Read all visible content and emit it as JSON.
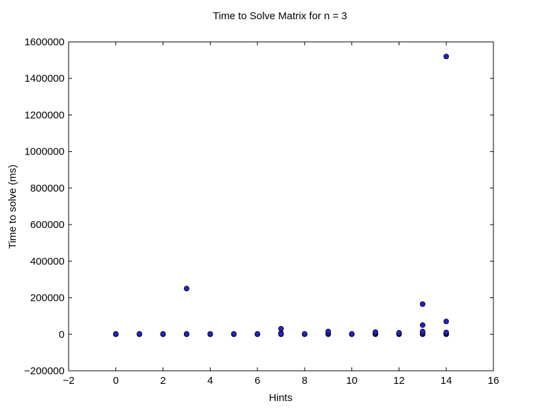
{
  "chart_data": {
    "type": "scatter",
    "title": "Time to Solve Matrix for n = 3",
    "xlabel": "Hints",
    "ylabel": "Time to solve (ms)",
    "xlim": [
      -2,
      16
    ],
    "ylim": [
      -200000,
      1600000
    ],
    "xticks": [
      -2,
      0,
      2,
      4,
      6,
      8,
      10,
      12,
      14,
      16
    ],
    "xtick_labels": [
      "−2",
      "0",
      "2",
      "4",
      "6",
      "8",
      "10",
      "12",
      "14",
      "16"
    ],
    "yticks": [
      -200000,
      0,
      200000,
      400000,
      600000,
      800000,
      1000000,
      1200000,
      1400000,
      1600000
    ],
    "ytick_labels": [
      "−200000",
      "0",
      "200000",
      "400000",
      "600000",
      "800000",
      "1000000",
      "1200000",
      "1400000",
      "1600000"
    ],
    "grid": false,
    "marker_color": "#2222cc",
    "marker_edge": "#000000",
    "series": [
      {
        "x": [
          0,
          0,
          1,
          1,
          2,
          2,
          3,
          3,
          3,
          4,
          4,
          5,
          5,
          6,
          6,
          7,
          7,
          7,
          7,
          8,
          8,
          9,
          9,
          9,
          10,
          10,
          11,
          11,
          11,
          12,
          12,
          12,
          13,
          13,
          13,
          13,
          13,
          14,
          14,
          14,
          14,
          14
        ],
        "y": [
          0,
          2000,
          0,
          2000,
          0,
          2000,
          0,
          2000,
          250000,
          0,
          2000,
          0,
          2000,
          0,
          2000,
          0,
          5000,
          30000,
          2000,
          0,
          2000,
          0,
          5000,
          15000,
          0,
          2000,
          0,
          5000,
          12000,
          0,
          3000,
          8000,
          0,
          5000,
          15000,
          50000,
          165000,
          0,
          5000,
          10000,
          70000,
          1520000
        ]
      }
    ]
  }
}
